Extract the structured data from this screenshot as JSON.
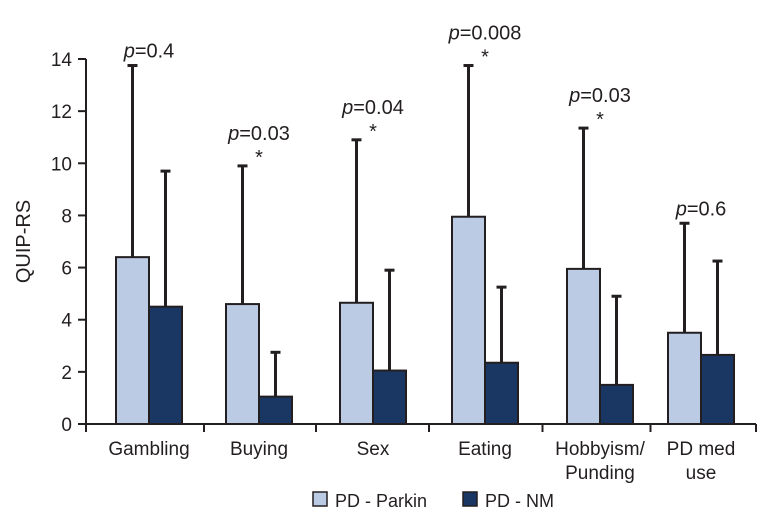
{
  "chart_data": {
    "type": "bar",
    "ylabel": "QUIP-RS",
    "ylim": [
      0,
      14
    ],
    "yticks": [
      0,
      2,
      4,
      6,
      8,
      10,
      12,
      14
    ],
    "categories": [
      {
        "lines": [
          "Gambling"
        ]
      },
      {
        "lines": [
          "Buying"
        ]
      },
      {
        "lines": [
          "Sex"
        ]
      },
      {
        "lines": [
          "Eating"
        ]
      },
      {
        "lines": [
          "Hobbyism/",
          "Punding"
        ]
      },
      {
        "lines": [
          "PD med",
          "use"
        ]
      }
    ],
    "series": [
      {
        "name": "PD - Parkin",
        "color": "#bccbe4",
        "values": [
          6.4,
          4.6,
          4.65,
          7.95,
          5.95,
          3.5
        ],
        "errors": [
          7.35,
          5.3,
          6.25,
          5.8,
          5.4,
          4.2
        ]
      },
      {
        "name": "PD - NM",
        "color": "#1a3763",
        "values": [
          4.5,
          1.05,
          2.05,
          2.35,
          1.5,
          2.65
        ],
        "errors": [
          5.2,
          1.7,
          3.85,
          2.9,
          3.4,
          3.6
        ]
      }
    ],
    "annotations": [
      {
        "italic": "p",
        "text": "=0.4",
        "star": false
      },
      {
        "italic": "p",
        "text": "=0.03",
        "star": true
      },
      {
        "italic": "p",
        "text": "=0.04",
        "star": true
      },
      {
        "italic": "p",
        "text": "=0.008",
        "star": true
      },
      {
        "italic": "p",
        "text": "=0.03",
        "star": true
      },
      {
        "italic": "p",
        "text": "=0.6",
        "star": false
      }
    ],
    "star_symbol": "*",
    "legend_position": "bottom-center",
    "grid": false
  }
}
